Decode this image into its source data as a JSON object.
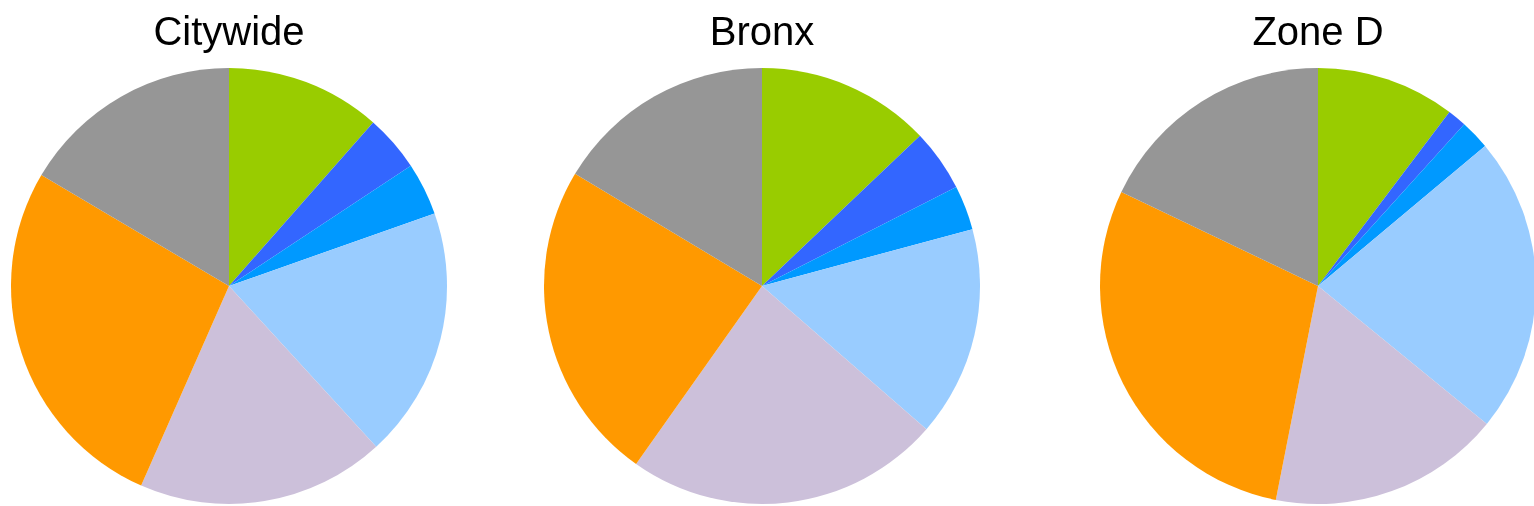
{
  "chart_data": [
    {
      "type": "pie",
      "title": "Citywide",
      "categories": [
        null,
        null,
        null,
        null,
        null,
        null,
        null
      ],
      "values": [
        11.5,
        4.2,
        3.9,
        18.6,
        18.4,
        26.9,
        16.5
      ],
      "colors": [
        "#99cc00",
        "#3366ff",
        "#0099ff",
        "#99ccff",
        "#ccc0da",
        "#ff9900",
        "#969696"
      ]
    },
    {
      "type": "pie",
      "title": "Bronx",
      "categories": [
        null,
        null,
        null,
        null,
        null,
        null,
        null
      ],
      "values": [
        12.9,
        4.6,
        3.3,
        15.6,
        23.4,
        23.8,
        16.4
      ],
      "colors": [
        "#99cc00",
        "#3366ff",
        "#0099ff",
        "#99ccff",
        "#ccc0da",
        "#ff9900",
        "#969696"
      ]
    },
    {
      "type": "pie",
      "title": "Zone D",
      "categories": [
        null,
        null,
        null,
        null,
        null,
        null,
        null
      ],
      "values": [
        10.3,
        1.4,
        2.2,
        22.0,
        17.2,
        29.0,
        17.9
      ],
      "colors": [
        "#99cc00",
        "#3366ff",
        "#0099ff",
        "#99ccff",
        "#ccc0da",
        "#ff9900",
        "#969696"
      ]
    }
  ]
}
